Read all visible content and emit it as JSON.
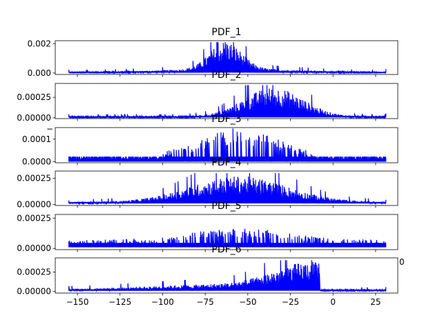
{
  "colors": {
    "line": "#0000ff",
    "axes": "#000000",
    "background": "#ffffff"
  },
  "chart_data": [
    {
      "type": "line",
      "title": "PDF_1",
      "xlim": [
        -163,
        38
      ],
      "ylim": [
        -0.0001,
        0.0022
      ],
      "yticks": [
        0.0,
        0.002
      ],
      "ytick_labels": [
        "0.000",
        "0.002"
      ],
      "xtick_labels_visible": false,
      "series": [
        {
          "x_range": [
            -155,
            31
          ],
          "envelope_shape": "single peak near -63",
          "baseline": 2e-05,
          "peak": 0.0021
        }
      ]
    },
    {
      "type": "line",
      "title": "PDF_2",
      "xlim": [
        -163,
        38
      ],
      "ylim": [
        -1e-05,
        0.00042
      ],
      "yticks": [
        0.0,
        0.00025
      ],
      "ytick_labels": [
        "0.00000",
        "0.00025"
      ],
      "xtick_labels_visible": false,
      "series": [
        {
          "x_range": [
            -155,
            31
          ],
          "envelope_shape": "broad peak near -35",
          "baseline": 5e-06,
          "peak": 0.0004
        }
      ]
    },
    {
      "type": "line",
      "title": "PDF_3",
      "xlim": [
        -163,
        38
      ],
      "ylim": [
        -5e-06,
        0.000152
      ],
      "yticks": [
        0.0,
        0.0001
      ],
      "ytick_labels": [
        "0.0000",
        "0.0001"
      ],
      "xtick_labels_visible": false,
      "series": [
        {
          "x_range": [
            -155,
            31
          ],
          "envelope_shape": "plateau between -80 and -40",
          "baseline": 0.0,
          "peak": 0.00015
        }
      ]
    },
    {
      "type": "line",
      "title": "PDF_4",
      "xlim": [
        -163,
        38
      ],
      "ylim": [
        -1e-05,
        0.00032
      ],
      "yticks": [
        0.0,
        0.00025
      ],
      "ytick_labels": [
        "0.00000",
        "0.00025"
      ],
      "xtick_labels_visible": false,
      "series": [
        {
          "x_range": [
            -155,
            31
          ],
          "envelope_shape": "broad peak near -55",
          "baseline": 1e-05,
          "peak": 0.0003
        }
      ]
    },
    {
      "type": "line",
      "title": "PDF_5",
      "xlim": [
        -163,
        38
      ],
      "ylim": [
        -1e-05,
        0.00028
      ],
      "yticks": [
        0.0,
        0.00025
      ],
      "ytick_labels": [
        "0.00000",
        "0.00025"
      ],
      "xtick_labels_visible": false,
      "series": [
        {
          "x_range": [
            -155,
            31
          ],
          "envelope_shape": "plateau with spikes near -55",
          "baseline": 1e-05,
          "peak": 0.00025
        }
      ]
    },
    {
      "type": "line",
      "title": "PDF_6",
      "xlim": [
        -163,
        38
      ],
      "ylim": [
        -2e-05,
        0.00043
      ],
      "yticks": [
        0.0,
        0.00025
      ],
      "ytick_labels": [
        "0.00000",
        "0.00025"
      ],
      "xticks": [
        -150,
        -125,
        -100,
        -75,
        -50,
        -25,
        0,
        25
      ],
      "xtick_labels": [
        "−150",
        "−125",
        "−100",
        "−75",
        "−50",
        "−25",
        "0",
        "25"
      ],
      "xtick_labels_visible": true,
      "series": [
        {
          "x_range": [
            -155,
            31
          ],
          "envelope_shape": "rising to peak near -10 then sharp drop",
          "baseline": 1e-05,
          "peak": 0.0004
        }
      ]
    }
  ],
  "overlap_artifacts": [
    "−",
    "0"
  ]
}
